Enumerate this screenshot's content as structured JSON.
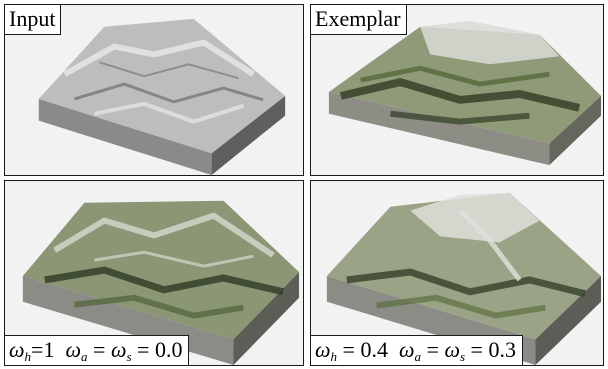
{
  "panels": [
    {
      "id": "input",
      "label": "Input",
      "palette": {
        "bg": "#f2f2f2",
        "rock_light": "#e9e9e9",
        "rock_mid": "#bdbdbd",
        "rock_dark": "#6e6e6e",
        "veg": "#d4d4d4",
        "side": "#8a8a8a",
        "side_dark": "#5f5f5f"
      }
    },
    {
      "id": "exemplar",
      "label": "Exemplar",
      "palette": {
        "bg": "#f2f2f2",
        "rock_light": "#d9dcd6",
        "rock_mid": "#8f9b78",
        "rock_dark": "#2f3b23",
        "veg": "#55683a",
        "side": "#8d8d86",
        "side_dark": "#66665e"
      }
    },
    {
      "id": "result-1",
      "label_parts": {
        "omega": "ω",
        "h_sub": "h",
        "h_val": "=1",
        "a_sub": "a",
        "s_sub": "s",
        "eq": "=",
        "tail": "= 0.0"
      },
      "palette": {
        "bg": "#f2f2f2",
        "rock_light": "#d6dad0",
        "rock_mid": "#8b9675",
        "rock_dark": "#2d3a24",
        "veg": "#4f6236",
        "side": "#8c8c86",
        "side_dark": "#5d5d57"
      }
    },
    {
      "id": "result-2",
      "label_parts": {
        "omega": "ω",
        "h_sub": "h",
        "h_val": "= 0.4",
        "a_sub": "a",
        "s_sub": "s",
        "eq": "=",
        "tail": "= 0.3"
      },
      "palette": {
        "bg": "#f2f2f2",
        "rock_light": "#dfe1dc",
        "rock_mid": "#9aa386",
        "rock_dark": "#34402a",
        "veg": "#5b6d40",
        "side": "#8c8c86",
        "side_dark": "#5d5d57"
      }
    }
  ]
}
